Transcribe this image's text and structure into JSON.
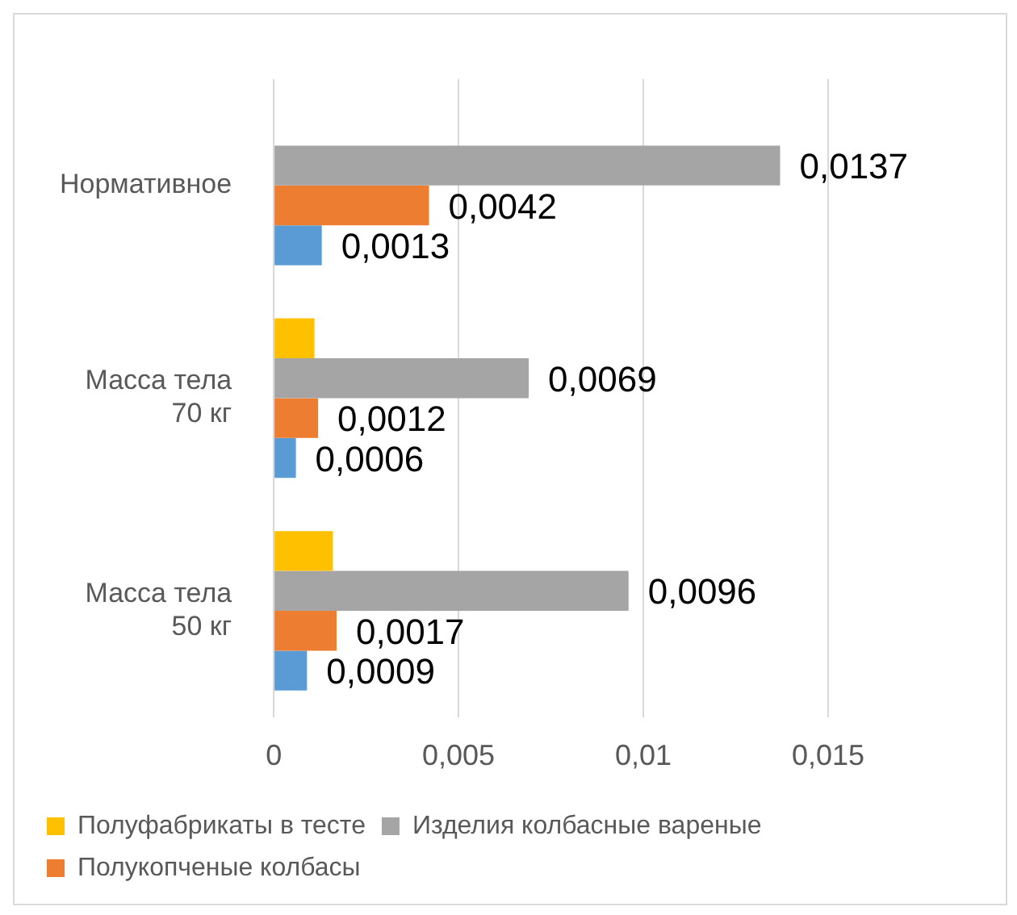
{
  "chart_data": {
    "type": "bar",
    "orientation": "horizontal",
    "categories": [
      "Нормативное",
      "Масса тела 70 кг",
      "Масса тела 50 кг"
    ],
    "series": [
      {
        "name": "Полуфабрикаты в тесте",
        "color": "#ffc000",
        "values": [
          null,
          0.0011,
          0.0016
        ]
      },
      {
        "name": "Изделия колбасные вареные",
        "color": "#a5a5a5",
        "values": [
          0.0137,
          0.0069,
          0.0096
        ],
        "value_labels": [
          "0,0137",
          "0,0069",
          "0,0096"
        ]
      },
      {
        "name": "Полукопченые колбасы",
        "color": "#ed7d31",
        "values": [
          0.0042,
          0.0012,
          0.0017
        ],
        "value_labels": [
          "0,0042",
          "0,0012",
          "0,0017"
        ]
      },
      {
        "color": "#5b9bd5",
        "values": [
          0.0013,
          0.0006,
          0.0009
        ],
        "value_labels": [
          "0,0013",
          "0,0006",
          "0,0009"
        ]
      }
    ],
    "xlim": [
      0,
      0.015
    ],
    "xticks": [
      {
        "value": 0,
        "label": "0"
      },
      {
        "value": 0.005,
        "label": "0,005"
      },
      {
        "value": 0.01,
        "label": "0,01"
      },
      {
        "value": 0.015,
        "label": "0,015"
      }
    ],
    "grid": "x",
    "legend": "bottom"
  }
}
